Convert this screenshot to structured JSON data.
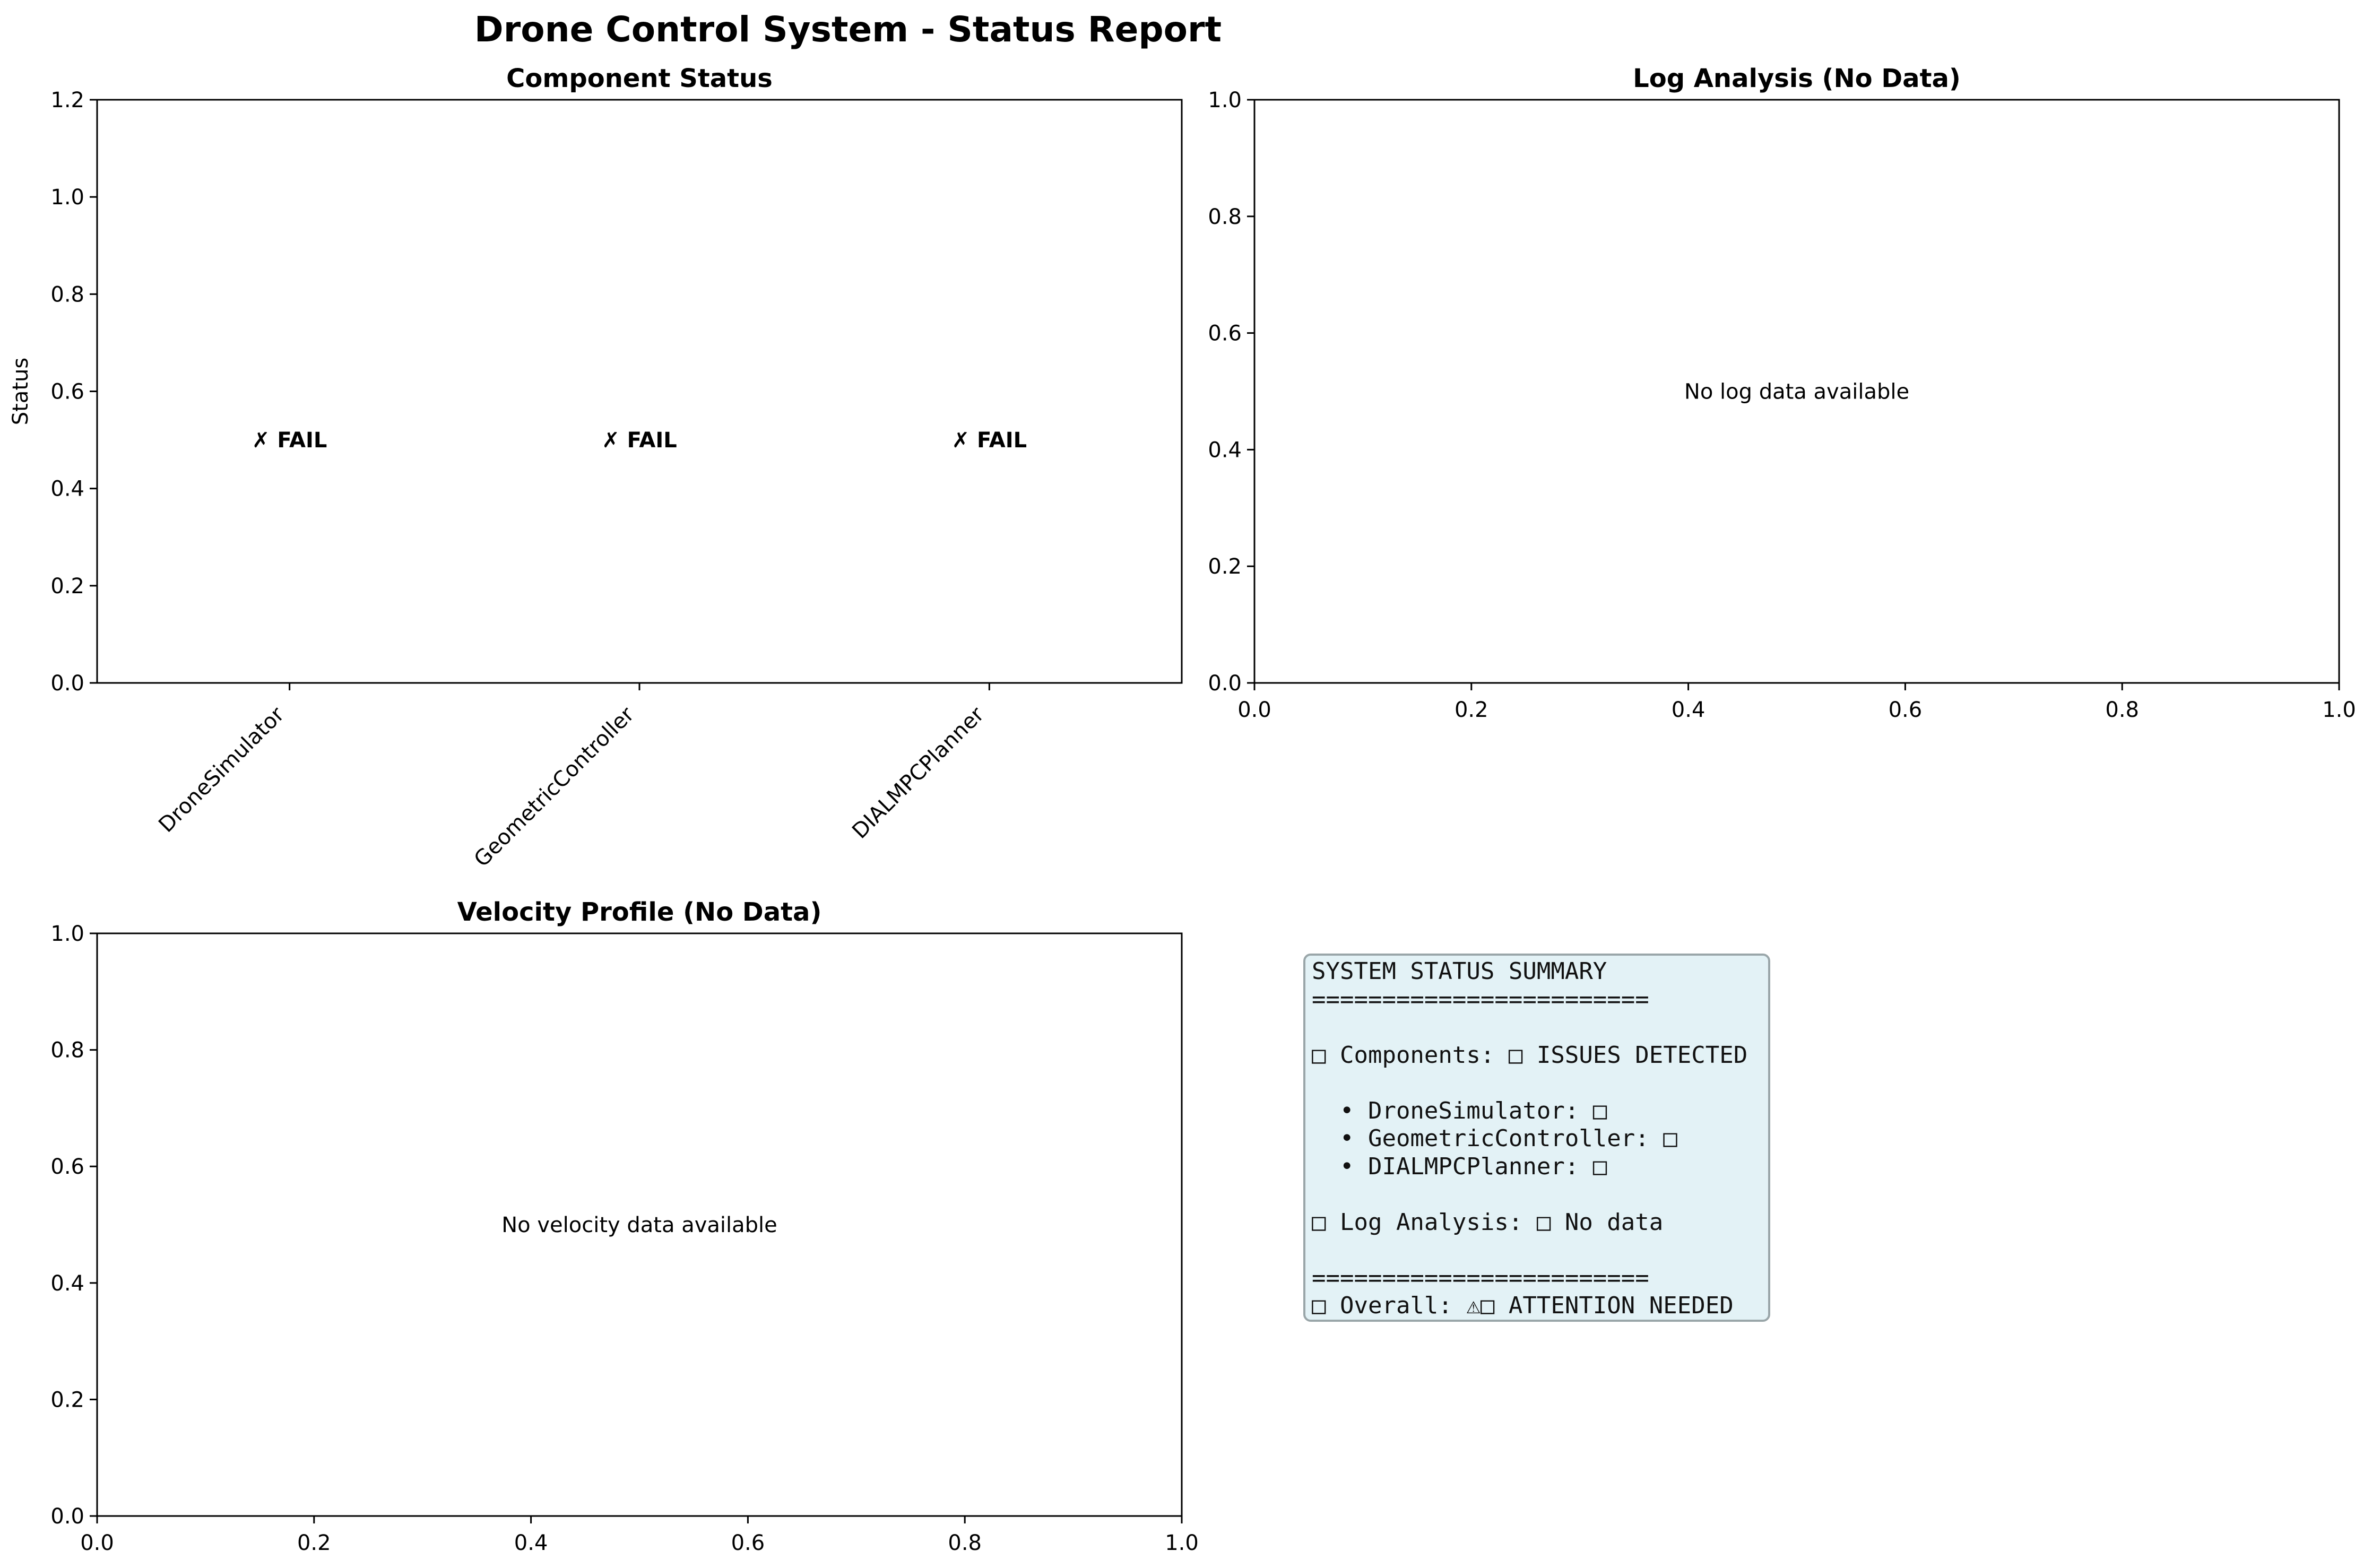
{
  "figure_title": "Drone Control System - Status Report",
  "chart_data": [
    {
      "type": "bar",
      "title": "Component Status",
      "xlabel": "",
      "ylabel": "Status",
      "categories": [
        "DroneSimulator",
        "GeometricController",
        "DIALMPCPlanner"
      ],
      "values": [
        0,
        0,
        0
      ],
      "bar_labels": [
        "✗ FAIL",
        "✗ FAIL",
        "✗ FAIL"
      ],
      "bar_label_y": 0.5,
      "ylim": [
        0,
        1.2
      ],
      "yticks": [
        "0.0",
        "0.2",
        "0.4",
        "0.6",
        "0.8",
        "1.0",
        "1.2"
      ],
      "grid": false
    },
    {
      "type": "line",
      "title": "Log Analysis (No Data)",
      "message": "No log data available",
      "xlim": [
        0,
        1
      ],
      "ylim": [
        0,
        1
      ],
      "xticks": [
        "0.0",
        "0.2",
        "0.4",
        "0.6",
        "0.8",
        "1.0"
      ],
      "yticks": [
        "0.0",
        "0.2",
        "0.4",
        "0.6",
        "0.8",
        "1.0"
      ],
      "series": [],
      "grid": false
    },
    {
      "type": "line",
      "title": "Velocity Profile (No Data)",
      "message": "No velocity data available",
      "xlim": [
        0,
        1
      ],
      "ylim": [
        0,
        1
      ],
      "xticks": [
        "0.0",
        "0.2",
        "0.4",
        "0.6",
        "0.8",
        "1.0"
      ],
      "yticks": [
        "0.0",
        "0.2",
        "0.4",
        "0.6",
        "0.8",
        "1.0"
      ],
      "series": [],
      "grid": false
    }
  ],
  "summary": {
    "lines": [
      "SYSTEM STATUS SUMMARY",
      "========================",
      "",
      "□ Components: □ ISSUES DETECTED",
      "",
      "  • DroneSimulator: □",
      "  • GeometricController: □",
      "  • DIALMPCPlanner: □",
      "",
      "□ Log Analysis: □ No data",
      "",
      "========================",
      "□ Overall: ⚠□ ATTENTION NEEDED"
    ],
    "background_color": "#e3f2f6",
    "border_color": "#9aa6a9"
  }
}
